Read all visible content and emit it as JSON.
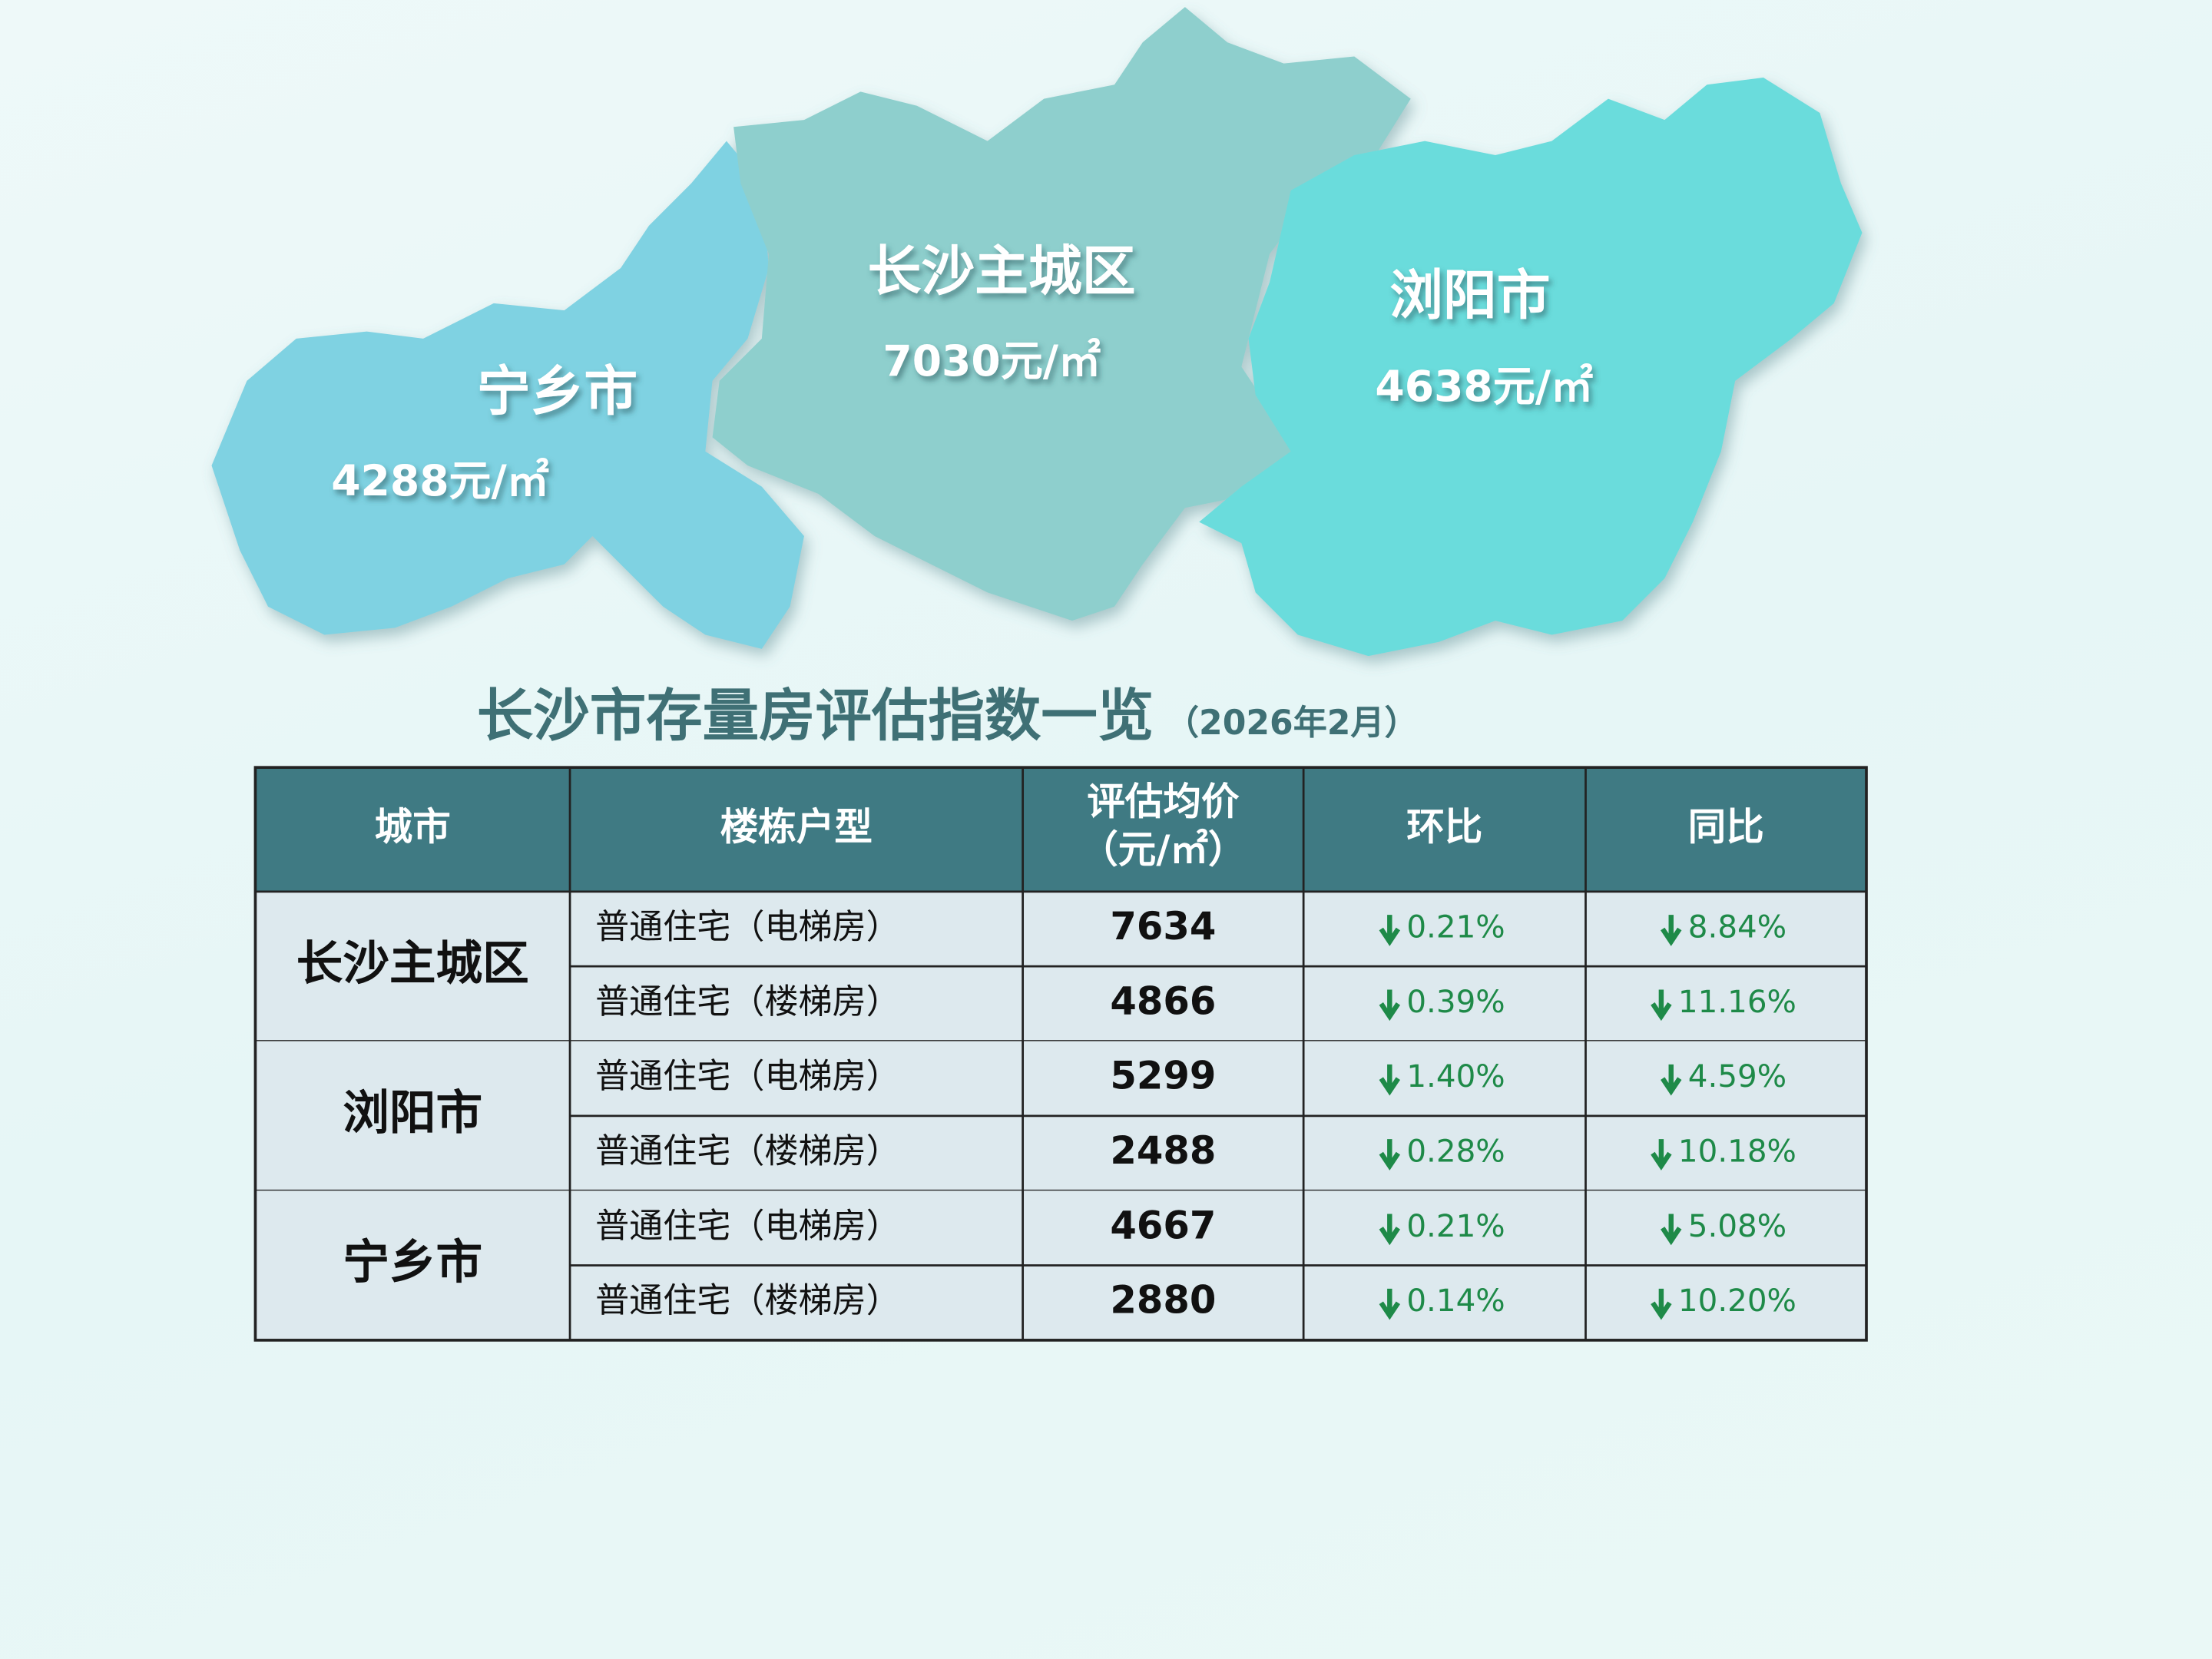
{
  "map": {
    "regions": [
      {
        "name": "宁乡市",
        "price": "4288元/㎡"
      },
      {
        "name": "长沙主城区",
        "price": "7030元/㎡"
      },
      {
        "name": "浏阳市",
        "price": "4638元/㎡"
      }
    ]
  },
  "table": {
    "title": "长沙市存量房评估指数一览",
    "subtitle": "（2026年2月）",
    "header": [
      "城市",
      "楼栋户型",
      [
        "评估均价",
        "（元/㎡）"
      ],
      "环比",
      "同比"
    ],
    "groups": [
      {
        "city": "长沙主城区",
        "rows": [
          [
            "普通住宅（电梯房）",
            "7634",
            "0.21%",
            "8.84%"
          ],
          [
            "普通住宅（楼梯房）",
            "4866",
            "0.39%",
            "11.16%"
          ]
        ]
      },
      {
        "city": "浏阳市",
        "rows": [
          [
            "普通住宅（电梯房）",
            "5299",
            "1.40%",
            "4.59%"
          ],
          [
            "普通住宅（楼梯房）",
            "2488",
            "0.28%",
            "10.18%"
          ]
        ]
      },
      {
        "city": "宁乡市",
        "rows": [
          [
            "普通住宅（电梯房）",
            "4667",
            "0.21%",
            "5.08%"
          ],
          [
            "普通住宅（楼梯房）",
            "2880",
            "0.14%",
            "10.20%"
          ]
        ]
      }
    ]
  }
}
